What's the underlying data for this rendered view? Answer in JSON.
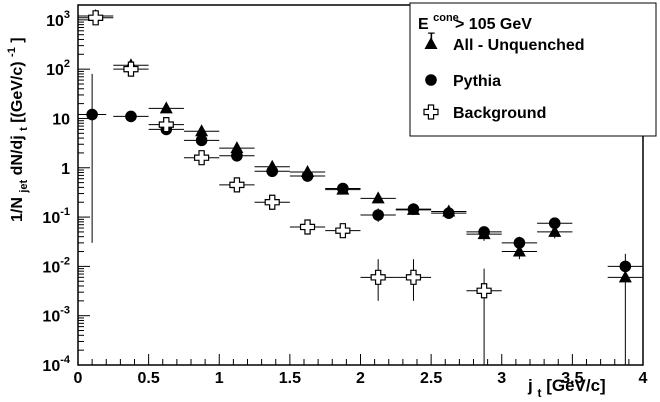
{
  "chart_data": {
    "type": "scatter",
    "xlabel": {
      "main": "j",
      "sub": "t",
      "rest": " [GeV/c]"
    },
    "ylabel": {
      "p1": "1/N",
      "sub1": "jet",
      "p2": " dN/dj",
      "sub2": "t",
      "p3": " [(GeV/c)",
      "sup": "-1",
      "p4": "]"
    },
    "xlim": [
      0,
      4
    ],
    "ylim": [
      0.0001,
      2000
    ],
    "yscale": "log",
    "xticks": [
      "0",
      "0.5",
      "1",
      "1.5",
      "2",
      "2.5",
      "3",
      "3.5",
      "4"
    ],
    "yticks": [
      {
        "base": "10",
        "exp": "3"
      },
      {
        "base": "10",
        "exp": "2"
      },
      {
        "base": "10",
        "exp": ""
      },
      {
        "base": "1",
        "exp": ""
      },
      {
        "base": "10",
        "exp": "-1"
      },
      {
        "base": "10",
        "exp": "-2"
      },
      {
        "base": "10",
        "exp": "-3"
      },
      {
        "base": "10",
        "exp": "-4"
      }
    ],
    "legend": {
      "placement": "top-right",
      "header": {
        "base": "E",
        "sub": "T",
        "sup": "cone",
        "rest": " > 105 GeV"
      }
    },
    "series": [
      {
        "name": "All - Unquenched",
        "marker": "triangle",
        "points": [
          {
            "x": 0.125,
            "y": 1200,
            "ylo": 1000,
            "yhi": 1450,
            "xerr": 0.125
          },
          {
            "x": 0.375,
            "y": 120,
            "ylo": 100,
            "yhi": 140,
            "xerr": 0.125
          },
          {
            "x": 0.625,
            "y": 16,
            "ylo": 13,
            "yhi": 19,
            "xerr": 0.125
          },
          {
            "x": 0.875,
            "y": 5.5,
            "ylo": 4.5,
            "yhi": 6.5,
            "xerr": 0.125
          },
          {
            "x": 1.125,
            "y": 2.5,
            "ylo": 2.0,
            "yhi": 3.0,
            "xerr": 0.125
          },
          {
            "x": 1.375,
            "y": 1.05,
            "ylo": 0.85,
            "yhi": 1.25,
            "xerr": 0.125
          },
          {
            "x": 1.625,
            "y": 0.82,
            "ylo": 0.68,
            "yhi": 0.96,
            "xerr": 0.125
          },
          {
            "x": 1.875,
            "y": 0.36,
            "ylo": 0.3,
            "yhi": 0.42,
            "xerr": 0.125
          },
          {
            "x": 2.125,
            "y": 0.24,
            "ylo": 0.19,
            "yhi": 0.3,
            "xerr": 0.125
          },
          {
            "x": 2.375,
            "y": 0.14,
            "ylo": 0.11,
            "yhi": 0.17,
            "xerr": 0.125
          },
          {
            "x": 2.625,
            "y": 0.13,
            "ylo": 0.1,
            "yhi": 0.16,
            "xerr": 0.125
          },
          {
            "x": 2.875,
            "y": 0.045,
            "ylo": 0.033,
            "yhi": 0.058,
            "xerr": 0.125
          },
          {
            "x": 3.125,
            "y": 0.02,
            "ylo": 0.014,
            "yhi": 0.027,
            "xerr": 0.125
          },
          {
            "x": 3.375,
            "y": 0.05,
            "ylo": 0.037,
            "yhi": 0.065,
            "xerr": 0.125
          },
          {
            "x": 3.875,
            "y": 0.006,
            "ylo": 0.0001,
            "yhi": 0.012,
            "xerr": 0.125
          }
        ]
      },
      {
        "name": "Pythia",
        "marker": "circle",
        "points": [
          {
            "x": 0.1,
            "y": 12,
            "ylo": 0.03,
            "yhi": 80,
            "xerr": 0.1
          },
          {
            "x": 0.375,
            "y": 11,
            "ylo": 9.5,
            "yhi": 12.5,
            "xerr": 0.125
          },
          {
            "x": 0.625,
            "y": 6,
            "ylo": 5,
            "yhi": 7.2,
            "xerr": 0.125
          },
          {
            "x": 0.875,
            "y": 3.6,
            "ylo": 3,
            "yhi": 4.3,
            "xerr": 0.125
          },
          {
            "x": 1.125,
            "y": 1.75,
            "ylo": 1.45,
            "yhi": 2.05,
            "xerr": 0.125
          },
          {
            "x": 1.375,
            "y": 0.85,
            "ylo": 0.7,
            "yhi": 1.0,
            "xerr": 0.125
          },
          {
            "x": 1.625,
            "y": 0.68,
            "ylo": 0.56,
            "yhi": 0.8,
            "xerr": 0.125
          },
          {
            "x": 1.875,
            "y": 0.38,
            "ylo": 0.31,
            "yhi": 0.45,
            "xerr": 0.125
          },
          {
            "x": 2.125,
            "y": 0.11,
            "ylo": 0.08,
            "yhi": 0.15,
            "xerr": 0.125
          },
          {
            "x": 2.375,
            "y": 0.145,
            "ylo": 0.115,
            "yhi": 0.175,
            "xerr": 0.125
          },
          {
            "x": 2.625,
            "y": 0.12,
            "ylo": 0.095,
            "yhi": 0.15,
            "xerr": 0.125
          },
          {
            "x": 2.875,
            "y": 0.05,
            "ylo": 0.038,
            "yhi": 0.064,
            "xerr": 0.125
          },
          {
            "x": 3.125,
            "y": 0.03,
            "ylo": 0.021,
            "yhi": 0.04,
            "xerr": 0.125
          },
          {
            "x": 3.375,
            "y": 0.075,
            "ylo": 0.058,
            "yhi": 0.095,
            "xerr": 0.125
          },
          {
            "x": 3.875,
            "y": 0.01,
            "ylo": 0.005,
            "yhi": 0.018,
            "xerr": 0.125
          }
        ]
      },
      {
        "name": "Background",
        "marker": "open-cross",
        "points": [
          {
            "x": 0.125,
            "y": 1100,
            "ylo": 950,
            "yhi": 1300,
            "xerr": 0.125
          },
          {
            "x": 0.375,
            "y": 100,
            "ylo": 85,
            "yhi": 115,
            "xerr": 0.125
          },
          {
            "x": 0.625,
            "y": 7.5,
            "ylo": 6.2,
            "yhi": 9,
            "xerr": 0.125
          },
          {
            "x": 0.875,
            "y": 1.6,
            "ylo": 1.3,
            "yhi": 1.95,
            "xerr": 0.125
          },
          {
            "x": 1.125,
            "y": 0.45,
            "ylo": 0.36,
            "yhi": 0.55,
            "xerr": 0.125
          },
          {
            "x": 1.375,
            "y": 0.2,
            "ylo": 0.155,
            "yhi": 0.25,
            "xerr": 0.125
          },
          {
            "x": 1.625,
            "y": 0.063,
            "ylo": 0.048,
            "yhi": 0.08,
            "xerr": 0.125
          },
          {
            "x": 1.875,
            "y": 0.053,
            "ylo": 0.04,
            "yhi": 0.068,
            "xerr": 0.125
          },
          {
            "x": 2.125,
            "y": 0.006,
            "ylo": 0.002,
            "yhi": 0.014,
            "xerr": 0.125
          },
          {
            "x": 2.375,
            "y": 0.006,
            "ylo": 0.002,
            "yhi": 0.014,
            "xerr": 0.125
          },
          {
            "x": 2.875,
            "y": 0.0032,
            "ylo": 0.0001,
            "yhi": 0.009,
            "xerr": 0.125
          }
        ]
      }
    ]
  }
}
